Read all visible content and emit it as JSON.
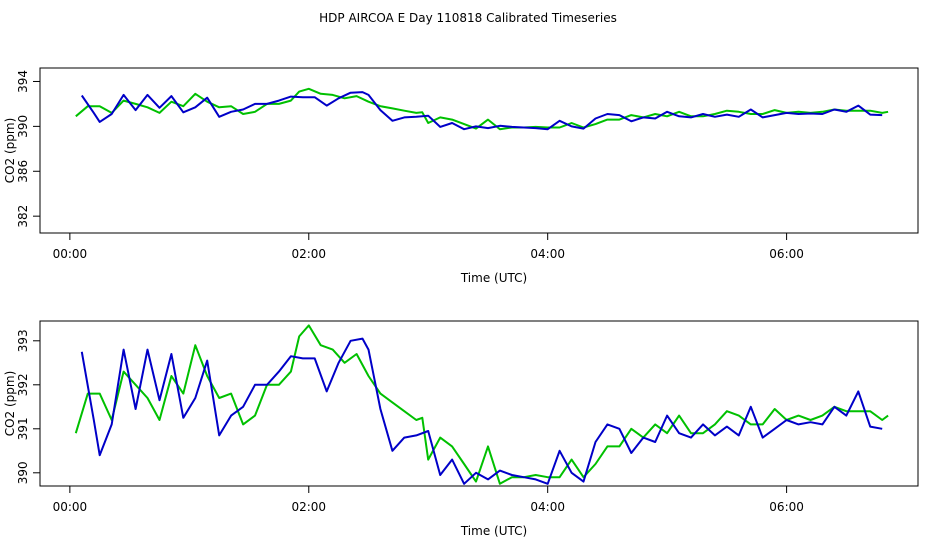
{
  "title": "HDP AIRCOA E  Day 110818  Calibrated Timeseries",
  "colors": {
    "green": "#00c000",
    "blue": "#0000c8",
    "frame": "#000000"
  },
  "chart_data": [
    {
      "type": "line",
      "xlabel": "Time (UTC)",
      "ylabel": "CO2 (ppm)",
      "xlim": [
        -0.25,
        7.1
      ],
      "ylim": [
        380.5,
        395.2
      ],
      "xticks": [
        0,
        2,
        4,
        6
      ],
      "xtick_labels": [
        "00:00",
        "02:00",
        "04:00",
        "06:00"
      ],
      "yticks": [
        382,
        386,
        390,
        394
      ],
      "ytick_labels": [
        "382",
        "386",
        "390",
        "394"
      ],
      "series": [
        {
          "color": "green",
          "x": [
            0.05,
            0.15,
            0.25,
            0.35,
            0.45,
            0.55,
            0.65,
            0.75,
            0.85,
            0.95,
            1.05,
            1.15,
            1.25,
            1.35,
            1.45,
            1.55,
            1.65,
            1.75,
            1.85,
            1.92,
            2.0,
            2.1,
            2.2,
            2.3,
            2.4,
            2.5,
            2.6,
            2.7,
            2.8,
            2.9,
            2.95,
            3.0,
            3.1,
            3.2,
            3.3,
            3.4,
            3.5,
            3.6,
            3.7,
            3.8,
            3.9,
            4.0,
            4.1,
            4.2,
            4.3,
            4.4,
            4.5,
            4.6,
            4.7,
            4.8,
            4.9,
            5.0,
            5.1,
            5.2,
            5.3,
            5.4,
            5.5,
            5.6,
            5.7,
            5.8,
            5.9,
            6.0,
            6.1,
            6.2,
            6.3,
            6.4,
            6.5,
            6.6,
            6.7,
            6.8,
            6.85
          ],
          "y": [
            390.9,
            391.8,
            391.8,
            391.2,
            392.3,
            392.0,
            391.7,
            391.2,
            392.2,
            391.8,
            392.9,
            392.2,
            391.7,
            391.8,
            391.1,
            391.3,
            392.0,
            392.0,
            392.3,
            393.1,
            393.35,
            392.9,
            392.8,
            392.5,
            392.7,
            392.2,
            391.8,
            391.6,
            391.4,
            391.2,
            391.25,
            390.3,
            390.8,
            390.6,
            390.2,
            389.8,
            390.6,
            389.75,
            389.9,
            389.9,
            389.95,
            389.9,
            389.9,
            390.3,
            389.9,
            390.2,
            390.6,
            390.6,
            391.0,
            390.8,
            391.1,
            390.9,
            391.3,
            390.9,
            390.9,
            391.1,
            391.4,
            391.3,
            391.1,
            391.1,
            391.45,
            391.2,
            391.3,
            391.2,
            391.3,
            391.5,
            391.4,
            391.4,
            391.4,
            391.2,
            391.3
          ]
        },
        {
          "color": "blue",
          "x": [
            0.1,
            0.2,
            0.25,
            0.35,
            0.45,
            0.55,
            0.65,
            0.75,
            0.85,
            0.95,
            1.05,
            1.15,
            1.25,
            1.35,
            1.45,
            1.55,
            1.65,
            1.75,
            1.85,
            1.95,
            2.05,
            2.15,
            2.25,
            2.35,
            2.45,
            2.5,
            2.6,
            2.7,
            2.8,
            2.9,
            3.0,
            3.1,
            3.2,
            3.3,
            3.4,
            3.5,
            3.6,
            3.7,
            3.8,
            3.9,
            4.0,
            4.1,
            4.2,
            4.3,
            4.4,
            4.5,
            4.6,
            4.7,
            4.8,
            4.9,
            5.0,
            5.1,
            5.2,
            5.3,
            5.4,
            5.5,
            5.6,
            5.7,
            5.8,
            5.9,
            6.0,
            6.1,
            6.2,
            6.3,
            6.4,
            6.5,
            6.6,
            6.7,
            6.8
          ],
          "y": [
            392.75,
            391.2,
            390.4,
            391.1,
            392.8,
            391.45,
            392.8,
            391.65,
            392.7,
            391.25,
            391.7,
            392.55,
            390.85,
            391.3,
            391.5,
            392.0,
            392.0,
            392.3,
            392.65,
            392.6,
            392.6,
            391.85,
            392.5,
            393.0,
            393.05,
            392.8,
            391.45,
            390.5,
            390.8,
            390.85,
            390.95,
            389.95,
            390.3,
            389.75,
            390.0,
            389.85,
            390.05,
            389.95,
            389.9,
            389.85,
            389.75,
            390.5,
            390.0,
            389.8,
            390.7,
            391.1,
            391.0,
            390.45,
            390.8,
            390.7,
            391.3,
            390.9,
            390.8,
            391.1,
            390.85,
            391.05,
            390.85,
            391.5,
            390.8,
            391.0,
            391.2,
            391.1,
            391.15,
            391.1,
            391.5,
            391.3,
            391.85,
            391.05,
            391.0
          ]
        }
      ]
    },
    {
      "type": "line",
      "xlabel": "Time (UTC)",
      "ylabel": "CO2 (ppm)",
      "xlim": [
        -0.25,
        7.1
      ],
      "ylim": [
        389.7,
        393.45
      ],
      "xticks": [
        0,
        2,
        4,
        6
      ],
      "xtick_labels": [
        "00:00",
        "02:00",
        "04:00",
        "06:00"
      ],
      "yticks": [
        390,
        391,
        392,
        393
      ],
      "ytick_labels": [
        "390",
        "391",
        "392",
        "393"
      ],
      "series_ref": "same as plot 1"
    }
  ]
}
